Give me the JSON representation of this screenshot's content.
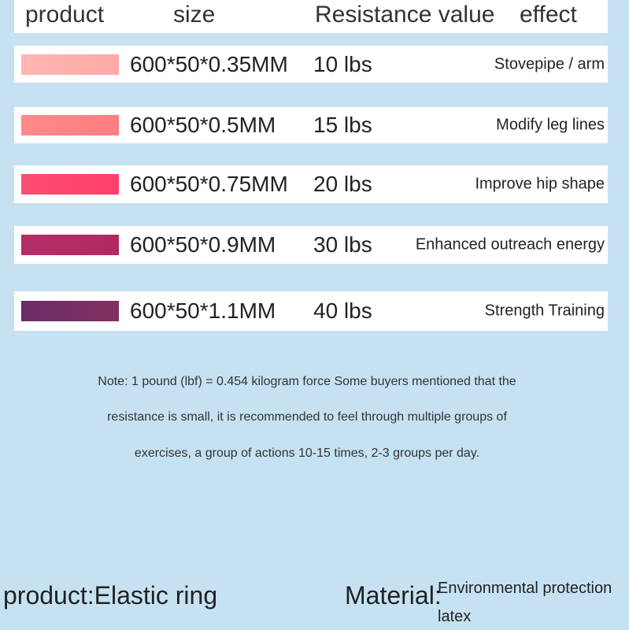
{
  "table": {
    "header": [
      "product",
      "size",
      "Resistance value",
      "effect"
    ],
    "rows": [
      [
        "600*50*0.35MM",
        "10 lbs",
        "Stovepipe / arm"
      ],
      [
        "600*50*0.5MM",
        "15 lbs",
        "Modify leg lines"
      ],
      [
        "600*50*0.75MM",
        "20 lbs",
        "Improve hip shape"
      ],
      [
        "600*50*0.9MM",
        "30 lbs",
        "Enhanced outreach energy"
      ],
      [
        "600*50*1.1MM",
        "40 lbs",
        "Strength Training"
      ]
    ]
  },
  "note": [
    "Note: 1 pound (lbf) = 0.454 kilogram force Some buyers mentioned that the",
    "resistance is small, it is recommended to feel through multiple groups of",
    "exercises, a group of actions 10-15 times, 2-3 groups per day."
  ],
  "footer": {
    "product_label": "product:",
    "product_value": "Elastic ring",
    "material_label": "Material:",
    "material_value": [
      "Environmental protection",
      "latex"
    ]
  }
}
